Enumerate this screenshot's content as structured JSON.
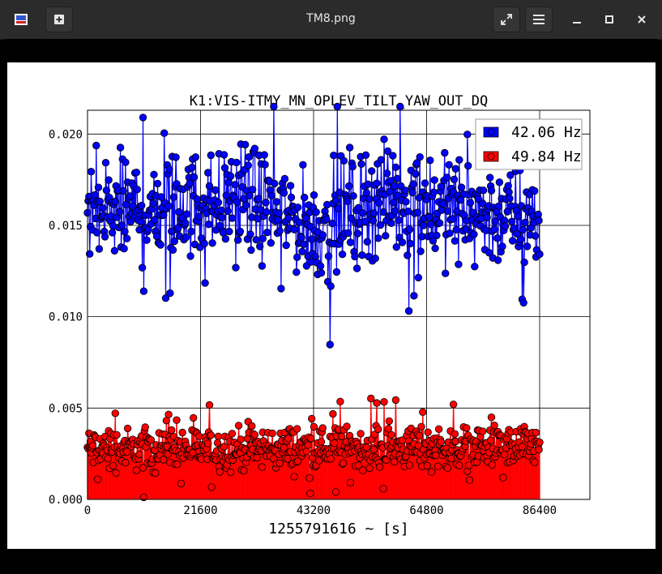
{
  "window": {
    "title": "TM8.png"
  },
  "toolbar": {
    "app_icon": "image-viewer-icon",
    "new_icon": "plus-box-icon",
    "fullscreen_icon": "expand-icon",
    "menu_icon": "hamburger-icon",
    "minimize_icon": "minimize-icon",
    "maximize_icon": "maximize-icon",
    "close_icon": "close-icon"
  },
  "chart_data": {
    "type": "scatter",
    "title": "K1:VIS-ITMY_MN_OPLEV_TILT_YAW_OUT_DQ",
    "xlabel": "1255791616 ~ [s]",
    "ylabel": "",
    "xlim": [
      0,
      96000
    ],
    "ylim": [
      0.0,
      0.0213
    ],
    "x_ticks": [
      0,
      21600,
      43200,
      64800,
      86400
    ],
    "x_tick_labels": [
      "0",
      "21600",
      "43200",
      "64800",
      "86400"
    ],
    "y_ticks": [
      0.0,
      0.005,
      0.01,
      0.015,
      0.02
    ],
    "y_tick_labels": [
      "0.000",
      "0.005",
      "0.010",
      "0.015",
      "0.020"
    ],
    "grid": true,
    "legend_position": "top-right",
    "series": [
      {
        "name": "42.06 Hz",
        "color": "#0000ff",
        "style": "stem",
        "x_range": [
          0,
          86400
        ],
        "bands": [
          [
            0,
            0.0135,
            0.0175
          ],
          [
            10000,
            0.014,
            0.0178
          ],
          [
            20000,
            0.0142,
            0.018
          ],
          [
            30000,
            0.0145,
            0.0185
          ],
          [
            37000,
            0.014,
            0.0175
          ],
          [
            43200,
            0.0128,
            0.0165
          ],
          [
            50000,
            0.0138,
            0.0178
          ],
          [
            56000,
            0.0145,
            0.0185
          ],
          [
            64800,
            0.0142,
            0.018
          ],
          [
            75000,
            0.0138,
            0.0175
          ],
          [
            86400,
            0.0135,
            0.017
          ]
        ],
        "max": 0.0215,
        "min": 0.0083
      },
      {
        "name": "49.84 Hz",
        "color": "#ff0000",
        "style": "stem",
        "x_range": [
          0,
          86400
        ],
        "bands": [
          [
            0,
            0.002,
            0.0035
          ],
          [
            43200,
            0.002,
            0.0036
          ],
          [
            86400,
            0.0022,
            0.0036
          ]
        ],
        "max": 0.0062,
        "min": 0.0
      }
    ]
  }
}
